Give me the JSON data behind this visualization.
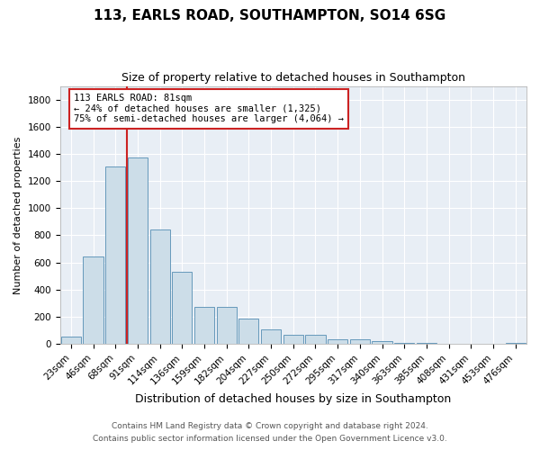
{
  "title1": "113, EARLS ROAD, SOUTHAMPTON, SO14 6SG",
  "title2": "Size of property relative to detached houses in Southampton",
  "xlabel": "Distribution of detached houses by size in Southampton",
  "ylabel": "Number of detached properties",
  "categories": [
    "23sqm",
    "46sqm",
    "68sqm",
    "91sqm",
    "114sqm",
    "136sqm",
    "159sqm",
    "182sqm",
    "204sqm",
    "227sqm",
    "250sqm",
    "272sqm",
    "295sqm",
    "317sqm",
    "340sqm",
    "363sqm",
    "385sqm",
    "408sqm",
    "431sqm",
    "453sqm",
    "476sqm"
  ],
  "values": [
    55,
    645,
    1310,
    1375,
    845,
    530,
    275,
    275,
    185,
    105,
    65,
    65,
    35,
    35,
    20,
    10,
    10,
    0,
    0,
    0,
    10
  ],
  "bar_color": "#ccdde8",
  "bar_edge_color": "#6699bb",
  "vline_color": "#cc2222",
  "vline_x_index": 2.5,
  "annotation_text": "113 EARLS ROAD: 81sqm\n← 24% of detached houses are smaller (1,325)\n75% of semi-detached houses are larger (4,064) →",
  "annotation_box_facecolor": "#ffffff",
  "annotation_box_edgecolor": "#cc2222",
  "ylim": [
    0,
    1900
  ],
  "yticks": [
    0,
    200,
    400,
    600,
    800,
    1000,
    1200,
    1400,
    1600,
    1800
  ],
  "footer1": "Contains HM Land Registry data © Crown copyright and database right 2024.",
  "footer2": "Contains public sector information licensed under the Open Government Licence v3.0.",
  "bg_color": "#ffffff",
  "plot_bg_color": "#e8eef5",
  "grid_color": "#ffffff",
  "title1_fontsize": 11,
  "title2_fontsize": 9,
  "xlabel_fontsize": 9,
  "ylabel_fontsize": 8,
  "tick_fontsize": 7.5,
  "annotation_fontsize": 7.5,
  "footer_fontsize": 6.5
}
